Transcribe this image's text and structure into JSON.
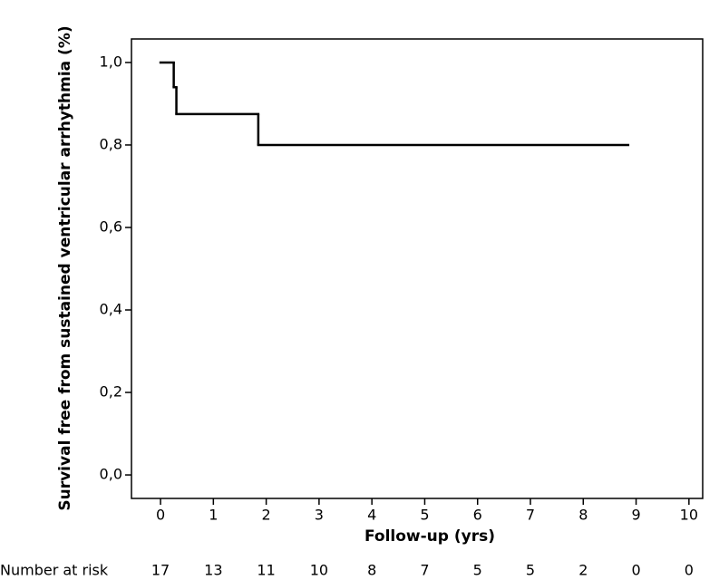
{
  "chart_data": {
    "type": "line",
    "step": "post",
    "y_label": "Survival free from sustained ventricular arrhythmia (%)",
    "x_label": "Follow-up (yrs)",
    "series": [
      {
        "color": "#000000",
        "x": [
          0,
          0.25,
          0.3,
          1.85
        ],
        "values": [
          1.0,
          0.94,
          0.875,
          0.8
        ],
        "x_end": 8.85
      }
    ],
    "xlim": [
      -0.55,
      10.26
    ],
    "ylim": [
      -0.057,
      1.057
    ],
    "xticks": [
      0,
      1,
      2,
      3,
      4,
      5,
      6,
      7,
      8,
      9,
      10
    ],
    "yticks": [
      {
        "value": 0,
        "label": "0,0"
      },
      {
        "value": 0.2,
        "label": "0,2"
      },
      {
        "value": 0.4,
        "label": "0,4"
      },
      {
        "value": 0.6,
        "label": "0,6"
      },
      {
        "value": 0.8,
        "label": "0,8"
      },
      {
        "value": 1,
        "label": "1,0"
      }
    ],
    "risk_table": {
      "label": "Number at risk",
      "values": [
        17,
        13,
        11,
        10,
        8,
        7,
        5,
        5,
        2,
        0,
        0
      ]
    }
  }
}
